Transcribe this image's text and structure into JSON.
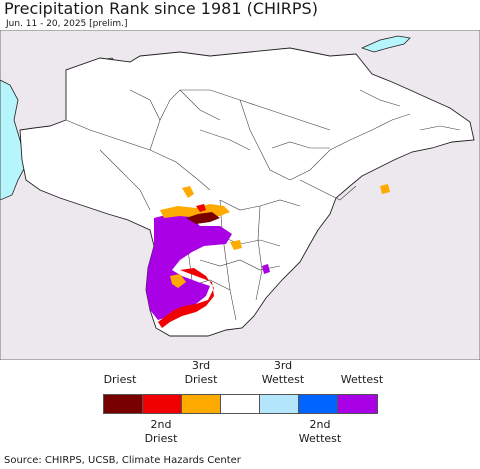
{
  "title": "Precipitation Rank since 1981 (CHIRPS)",
  "subtitle": "Jun. 11 - 20, 2025 [prelim.]",
  "map": {
    "colors": {
      "background": "#ece8ee",
      "land": "#ffffff",
      "water": "#b6f5fb",
      "border": "#222222"
    }
  },
  "legend": {
    "top_labels": [
      "Driest",
      "3rd\nDriest",
      "3rd\nWettest",
      "Wettest"
    ],
    "bottom_labels": [
      "2nd\nDriest",
      "2nd\nWettest"
    ],
    "swatches": [
      {
        "name": "driest",
        "color": "#780000"
      },
      {
        "name": "2nd-driest",
        "color": "#f00000"
      },
      {
        "name": "3rd-driest",
        "color": "#ffaa00"
      },
      {
        "name": "normal",
        "color": "#ffffff"
      },
      {
        "name": "3rd-wettest",
        "color": "#b4e6fb"
      },
      {
        "name": "2nd-wettest",
        "color": "#0064ff"
      },
      {
        "name": "wettest",
        "color": "#aa00e6"
      }
    ]
  },
  "source": "Source: CHIRPS, UCSB, Climate Hazards Center"
}
